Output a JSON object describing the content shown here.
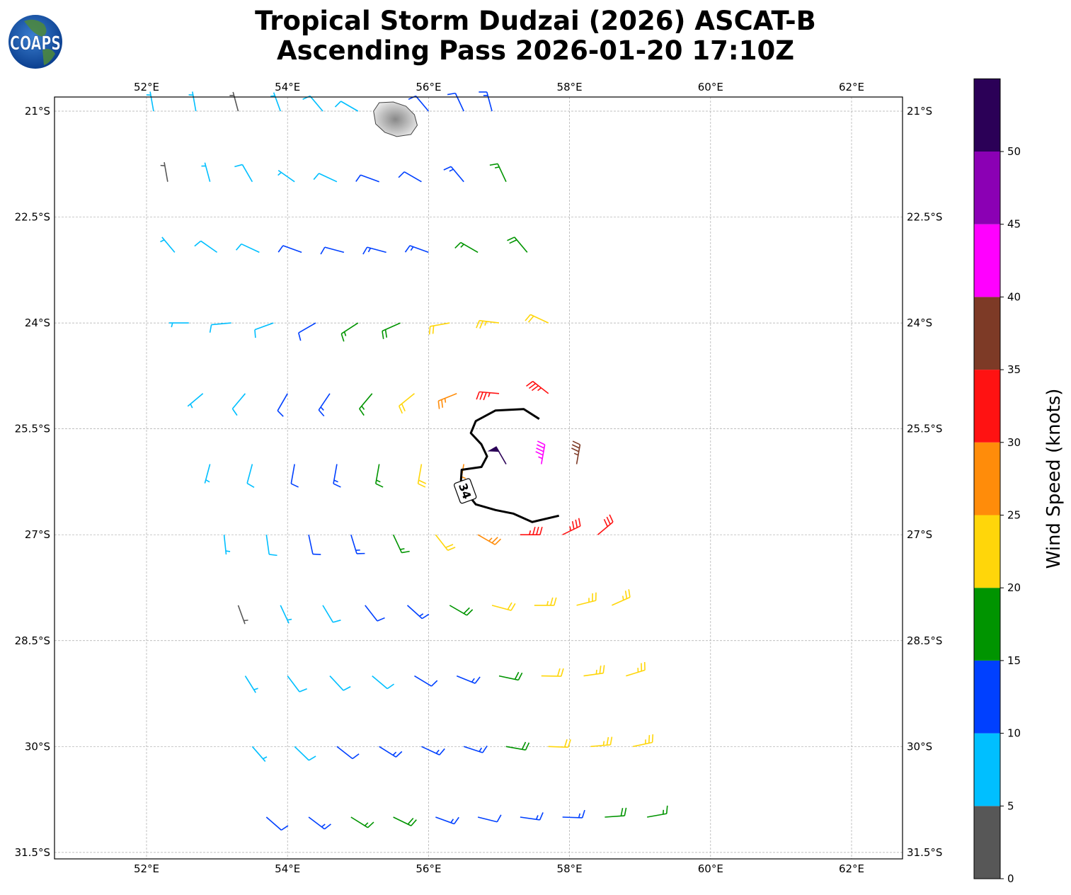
{
  "title": {
    "line1": "Tropical Storm Dudzai (2026) ASCAT-B",
    "line2": "Ascending Pass 2026-01-20 17:10Z"
  },
  "logo": {
    "text": "COAPS",
    "icon": "globe-logo"
  },
  "colorbar": {
    "label": "Wind Speed (knots)",
    "bounds": [
      0,
      5,
      10,
      15,
      20,
      25,
      30,
      35,
      40,
      45,
      50,
      55
    ],
    "tick_labels": [
      "0",
      "5",
      "10",
      "15",
      "20",
      "25",
      "30",
      "35",
      "40",
      "45",
      "50"
    ],
    "colors": [
      "#575757",
      "#00bfff",
      "#0040ff",
      "#009400",
      "#ffd60a",
      "#ff8c0a",
      "#ff1212",
      "#7d3a26",
      "#ff00ff",
      "#8b00b4",
      "#2b0057"
    ]
  },
  "map": {
    "lon_range": [
      50.7,
      62.7
    ],
    "lat_range": [
      20.8,
      31.6
    ],
    "lon_ticks": [
      52,
      54,
      56,
      58,
      60,
      62
    ],
    "lon_tick_labels": [
      "52°E",
      "54°E",
      "56°E",
      "58°E",
      "60°E",
      "62°E"
    ],
    "lat_ticks": [
      21,
      22.5,
      24,
      25.5,
      27,
      28.5,
      30,
      31.5
    ],
    "lat_tick_labels": [
      "21°S",
      "22.5°S",
      "24°S",
      "25.5°S",
      "27°S",
      "28.5°S",
      "30°S",
      "31.5°S"
    ],
    "gridlines": true,
    "island": {
      "name": "",
      "outline": [
        [
          55.22,
          21.0
        ],
        [
          55.3,
          20.88
        ],
        [
          55.5,
          20.87
        ],
        [
          55.68,
          20.93
        ],
        [
          55.8,
          21.05
        ],
        [
          55.84,
          21.2
        ],
        [
          55.75,
          21.33
        ],
        [
          55.55,
          21.36
        ],
        [
          55.38,
          21.3
        ],
        [
          55.25,
          21.18
        ]
      ]
    },
    "contour_34kt": {
      "label": "34",
      "label_position": [
        56.52,
        26.38
      ],
      "points": [
        [
          57.57,
          25.36
        ],
        [
          57.35,
          25.22
        ],
        [
          56.95,
          25.24
        ],
        [
          56.67,
          25.39
        ],
        [
          56.6,
          25.56
        ],
        [
          56.75,
          25.72
        ],
        [
          56.83,
          25.89
        ],
        [
          56.75,
          26.04
        ],
        [
          56.47,
          26.08
        ],
        [
          56.46,
          26.23
        ],
        [
          56.52,
          26.38
        ],
        [
          56.67,
          26.57
        ],
        [
          56.95,
          26.65
        ],
        [
          57.2,
          26.7
        ],
        [
          57.47,
          26.82
        ],
        [
          57.85,
          26.73
        ]
      ]
    }
  },
  "wind_barbs_columns": [
    "lon",
    "lat_south",
    "speed_kt",
    "from_direction_deg"
  ],
  "wind_rows": [
    {
      "lat": 21,
      "lon": [
        52.1,
        52.7,
        53.3,
        53.9,
        54.5,
        55.0,
        56.0,
        56.5,
        56.9
      ],
      "kt": [
        7,
        7,
        3,
        7,
        8,
        8,
        11,
        12,
        13
      ],
      "dir": [
        350,
        350,
        345,
        340,
        320,
        300,
        320,
        335,
        345
      ]
    },
    {
      "lat": 22,
      "lon": [
        52.3,
        52.9,
        53.5,
        54.1,
        54.7,
        55.3,
        55.9,
        56.5,
        57.1
      ],
      "kt": [
        3,
        7,
        8,
        7,
        9,
        11,
        12,
        13,
        17
      ],
      "dir": [
        350,
        345,
        330,
        305,
        295,
        290,
        300,
        320,
        335
      ]
    },
    {
      "lat": 23,
      "lon": [
        52.4,
        53.0,
        53.6,
        54.2,
        54.8,
        55.4,
        56.0,
        56.7,
        57.4
      ],
      "kt": [
        7,
        8,
        8,
        11,
        12,
        13,
        13,
        15,
        18
      ],
      "dir": [
        320,
        305,
        295,
        290,
        285,
        285,
        290,
        300,
        320
      ]
    },
    {
      "lat": 24,
      "lon": [
        52.6,
        53.2,
        53.8,
        54.4,
        55.0,
        55.6,
        56.3,
        57.0,
        57.7
      ],
      "kt": [
        6,
        8,
        9,
        12,
        16,
        19,
        22,
        24,
        22
      ],
      "dir": [
        270,
        265,
        250,
        240,
        237,
        246,
        260,
        277,
        295
      ]
    },
    {
      "lat": 25,
      "lon": [
        52.8,
        53.4,
        54.0,
        54.6,
        55.2,
        55.8,
        56.4,
        57.0,
        57.7
      ],
      "kt": [
        7,
        8,
        11,
        13,
        17,
        22,
        27,
        34,
        33
      ],
      "dir": [
        230,
        220,
        210,
        214,
        220,
        231,
        248,
        275,
        308
      ]
    },
    {
      "lat": 26,
      "lon": [
        52.9,
        53.5,
        54.1,
        54.7,
        55.3,
        55.9,
        56.5,
        57.1,
        57.6,
        58.1
      ],
      "kt": [
        7,
        8,
        11,
        13,
        17,
        21,
        27,
        52,
        44,
        36
      ],
      "dir": [
        195,
        195,
        190,
        190,
        190,
        190,
        190,
        330,
        10,
        10
      ]
    },
    {
      "lat": 27,
      "lon": [
        53.1,
        53.7,
        54.3,
        54.9,
        55.5,
        56.1,
        56.7,
        57.3,
        57.9,
        58.4
      ],
      "kt": [
        7,
        8,
        11,
        13,
        16,
        21,
        27,
        33,
        34,
        30
      ],
      "dir": [
        174,
        172,
        168,
        163,
        155,
        142,
        120,
        90,
        64,
        50
      ]
    },
    {
      "lat": 28,
      "lon": [
        53.3,
        53.9,
        54.5,
        55.1,
        55.7,
        56.3,
        56.9,
        57.5,
        58.1,
        58.6
      ],
      "kt": [
        3,
        7,
        8,
        12,
        13,
        18,
        22,
        23,
        24,
        23
      ],
      "dir": [
        160,
        155,
        149,
        142,
        132,
        120,
        105,
        90,
        76,
        66
      ]
    },
    {
      "lat": 29,
      "lon": [
        53.4,
        54.0,
        54.6,
        55.2,
        55.8,
        56.4,
        57.0,
        57.6,
        58.2,
        58.8
      ],
      "kt": [
        7,
        8,
        8,
        9,
        12,
        13,
        18,
        22,
        23,
        23
      ],
      "dir": [
        148,
        143,
        137,
        130,
        121,
        112,
        102,
        91,
        82,
        73
      ]
    },
    {
      "lat": 30,
      "lon": [
        53.5,
        54.1,
        54.7,
        55.3,
        55.9,
        56.5,
        57.1,
        57.7,
        58.3,
        58.9
      ],
      "kt": [
        7,
        9,
        12,
        13,
        13,
        14,
        18,
        22,
        23,
        23
      ],
      "dir": [
        139,
        134,
        128,
        122,
        115,
        108,
        100,
        92,
        85,
        78
      ]
    },
    {
      "lat": 31,
      "lon": [
        53.7,
        54.3,
        54.9,
        55.5,
        56.1,
        56.7,
        57.3,
        57.9,
        58.5,
        59.1
      ],
      "kt": [
        12,
        13,
        17,
        18,
        13,
        12,
        13,
        14,
        18,
        17
      ],
      "dir": [
        131,
        127,
        122,
        116,
        110,
        104,
        98,
        92,
        86,
        80
      ]
    }
  ]
}
